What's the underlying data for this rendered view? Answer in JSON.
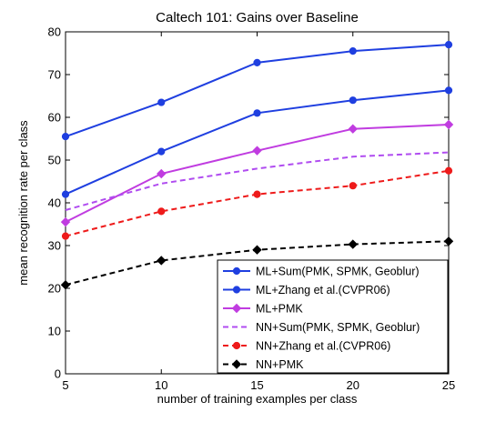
{
  "chart_data": {
    "type": "line",
    "title": "Caltech 101: Gains over Baseline",
    "xlabel": "number of training examples per class",
    "ylabel": "mean recognition rate per class",
    "x": [
      5,
      10,
      15,
      20,
      25
    ],
    "xlim": [
      5,
      25
    ],
    "ylim": [
      0,
      80
    ],
    "xticks": [
      5,
      10,
      15,
      20,
      25
    ],
    "yticks": [
      0,
      10,
      20,
      30,
      40,
      50,
      60,
      70,
      80
    ],
    "grid": false,
    "legend_position": "bottom-right",
    "series": [
      {
        "name": "ML+Sum(PMK, SPMK, Geoblur)",
        "values": [
          55.5,
          63.5,
          72.8,
          75.5,
          77
        ],
        "color": "#1f3fe0",
        "dash": "solid",
        "marker": "circle"
      },
      {
        "name": "ML+Zhang et al.(CVPR06)",
        "values": [
          42,
          52,
          61,
          64,
          66.3
        ],
        "color": "#1f3fe0",
        "dash": "solid",
        "marker": "circle"
      },
      {
        "name": "ML+PMK",
        "values": [
          35.5,
          46.8,
          52.2,
          57.3,
          58.3
        ],
        "color": "#c03ce0",
        "dash": "solid",
        "marker": "diamond"
      },
      {
        "name": "NN+Sum(PMK, SPMK, Geoblur)",
        "values": [
          38.3,
          44.5,
          48,
          50.8,
          51.8
        ],
        "color": "#b04cf0",
        "dash": "dashed",
        "marker": "none"
      },
      {
        "name": "NN+Zhang et al.(CVPR06)",
        "values": [
          32.2,
          38,
          42,
          44,
          47.5
        ],
        "color": "#ee1b1b",
        "dash": "dashed",
        "marker": "circle"
      },
      {
        "name": "NN+PMK",
        "values": [
          20.8,
          26.5,
          29,
          30.3,
          31
        ],
        "color": "#000000",
        "dash": "dashed",
        "marker": "diamond"
      }
    ]
  }
}
